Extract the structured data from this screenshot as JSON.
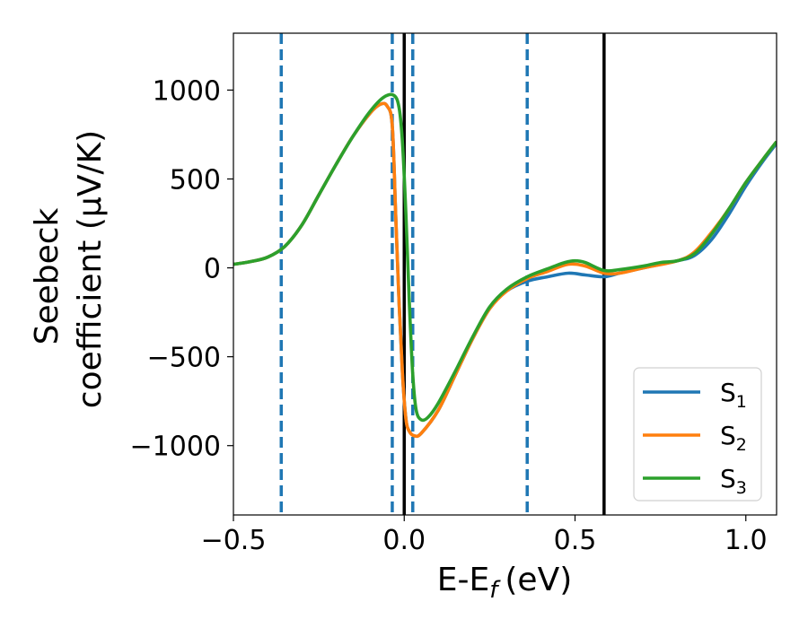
{
  "chart_data": {
    "type": "line",
    "xlabel_main": "E-E",
    "xlabel_sub": "f",
    "xlabel_unit": "(eV)",
    "ylabel_line1": "Seebeck",
    "ylabel_line2": "coefficient  (μV/K)",
    "xlim": [
      -0.5,
      1.09
    ],
    "ylim": [
      -1390,
      1320
    ],
    "xticks": [
      -0.5,
      0.0,
      0.5,
      1.0
    ],
    "xtick_labels": [
      "−0.5",
      "0.0",
      "0.5",
      "1.0"
    ],
    "yticks": [
      -1000,
      -500,
      0,
      500,
      1000
    ],
    "ytick_labels": [
      "−1000",
      "−500",
      "0",
      "500",
      "1000"
    ],
    "vlines_dashed": [
      -0.36,
      -0.035,
      0.025,
      0.36
    ],
    "vlines_solid": [
      0.0,
      0.585
    ],
    "vline_dashed_color": "#1f77b4",
    "vline_solid_color": "#000000",
    "legend_position": "lower-right",
    "series": [
      {
        "name": "S",
        "sub": "1",
        "color": "#1f77b4",
        "points": [
          [
            -0.5,
            20
          ],
          [
            -0.45,
            35
          ],
          [
            -0.4,
            60
          ],
          [
            -0.35,
            120
          ],
          [
            -0.3,
            240
          ],
          [
            -0.25,
            410
          ],
          [
            -0.2,
            580
          ],
          [
            -0.15,
            740
          ],
          [
            -0.1,
            870
          ],
          [
            -0.07,
            920
          ],
          [
            -0.05,
            910
          ],
          [
            -0.035,
            800
          ],
          [
            -0.025,
            300
          ],
          [
            -0.015,
            -200
          ],
          [
            -0.005,
            -600
          ],
          [
            0.005,
            -850
          ],
          [
            0.015,
            -920
          ],
          [
            0.03,
            -945
          ],
          [
            0.05,
            -930
          ],
          [
            0.1,
            -800
          ],
          [
            0.15,
            -600
          ],
          [
            0.2,
            -400
          ],
          [
            0.25,
            -230
          ],
          [
            0.3,
            -130
          ],
          [
            0.36,
            -75
          ],
          [
            0.42,
            -50
          ],
          [
            0.48,
            -30
          ],
          [
            0.53,
            -40
          ],
          [
            0.585,
            -50
          ],
          [
            0.63,
            -30
          ],
          [
            0.7,
            0
          ],
          [
            0.8,
            40
          ],
          [
            0.85,
            70
          ],
          [
            0.9,
            160
          ],
          [
            0.95,
            300
          ],
          [
            1.0,
            460
          ],
          [
            1.05,
            600
          ],
          [
            1.09,
            700
          ]
        ]
      },
      {
        "name": "S",
        "sub": "2",
        "color": "#ff7f0e",
        "points": [
          [
            -0.5,
            20
          ],
          [
            -0.45,
            35
          ],
          [
            -0.4,
            60
          ],
          [
            -0.35,
            120
          ],
          [
            -0.3,
            240
          ],
          [
            -0.25,
            410
          ],
          [
            -0.2,
            580
          ],
          [
            -0.15,
            740
          ],
          [
            -0.1,
            870
          ],
          [
            -0.07,
            920
          ],
          [
            -0.05,
            910
          ],
          [
            -0.035,
            800
          ],
          [
            -0.025,
            300
          ],
          [
            -0.015,
            -200
          ],
          [
            -0.005,
            -600
          ],
          [
            0.005,
            -850
          ],
          [
            0.015,
            -920
          ],
          [
            0.03,
            -945
          ],
          [
            0.05,
            -930
          ],
          [
            0.1,
            -800
          ],
          [
            0.15,
            -600
          ],
          [
            0.2,
            -400
          ],
          [
            0.25,
            -230
          ],
          [
            0.3,
            -130
          ],
          [
            0.36,
            -60
          ],
          [
            0.42,
            -20
          ],
          [
            0.48,
            20
          ],
          [
            0.53,
            10
          ],
          [
            0.585,
            -30
          ],
          [
            0.63,
            -30
          ],
          [
            0.7,
            0
          ],
          [
            0.8,
            40
          ],
          [
            0.85,
            90
          ],
          [
            0.9,
            200
          ],
          [
            0.95,
            330
          ],
          [
            1.0,
            480
          ],
          [
            1.05,
            610
          ],
          [
            1.09,
            710
          ]
        ]
      },
      {
        "name": "S",
        "sub": "3",
        "color": "#2ca02c",
        "points": [
          [
            -0.5,
            20
          ],
          [
            -0.45,
            35
          ],
          [
            -0.4,
            60
          ],
          [
            -0.35,
            120
          ],
          [
            -0.3,
            240
          ],
          [
            -0.25,
            410
          ],
          [
            -0.2,
            580
          ],
          [
            -0.15,
            740
          ],
          [
            -0.1,
            880
          ],
          [
            -0.06,
            960
          ],
          [
            -0.03,
            970
          ],
          [
            -0.015,
            900
          ],
          [
            -0.005,
            700
          ],
          [
            0.005,
            300
          ],
          [
            0.015,
            -200
          ],
          [
            0.025,
            -600
          ],
          [
            0.035,
            -800
          ],
          [
            0.05,
            -855
          ],
          [
            0.07,
            -840
          ],
          [
            0.1,
            -760
          ],
          [
            0.15,
            -580
          ],
          [
            0.2,
            -390
          ],
          [
            0.25,
            -220
          ],
          [
            0.3,
            -120
          ],
          [
            0.36,
            -50
          ],
          [
            0.42,
            -5
          ],
          [
            0.47,
            30
          ],
          [
            0.5,
            40
          ],
          [
            0.53,
            30
          ],
          [
            0.585,
            -15
          ],
          [
            0.63,
            -10
          ],
          [
            0.7,
            10
          ],
          [
            0.75,
            30
          ],
          [
            0.8,
            40
          ],
          [
            0.85,
            80
          ],
          [
            0.9,
            190
          ],
          [
            0.95,
            330
          ],
          [
            1.0,
            480
          ],
          [
            1.05,
            610
          ],
          [
            1.09,
            710
          ]
        ]
      }
    ]
  }
}
